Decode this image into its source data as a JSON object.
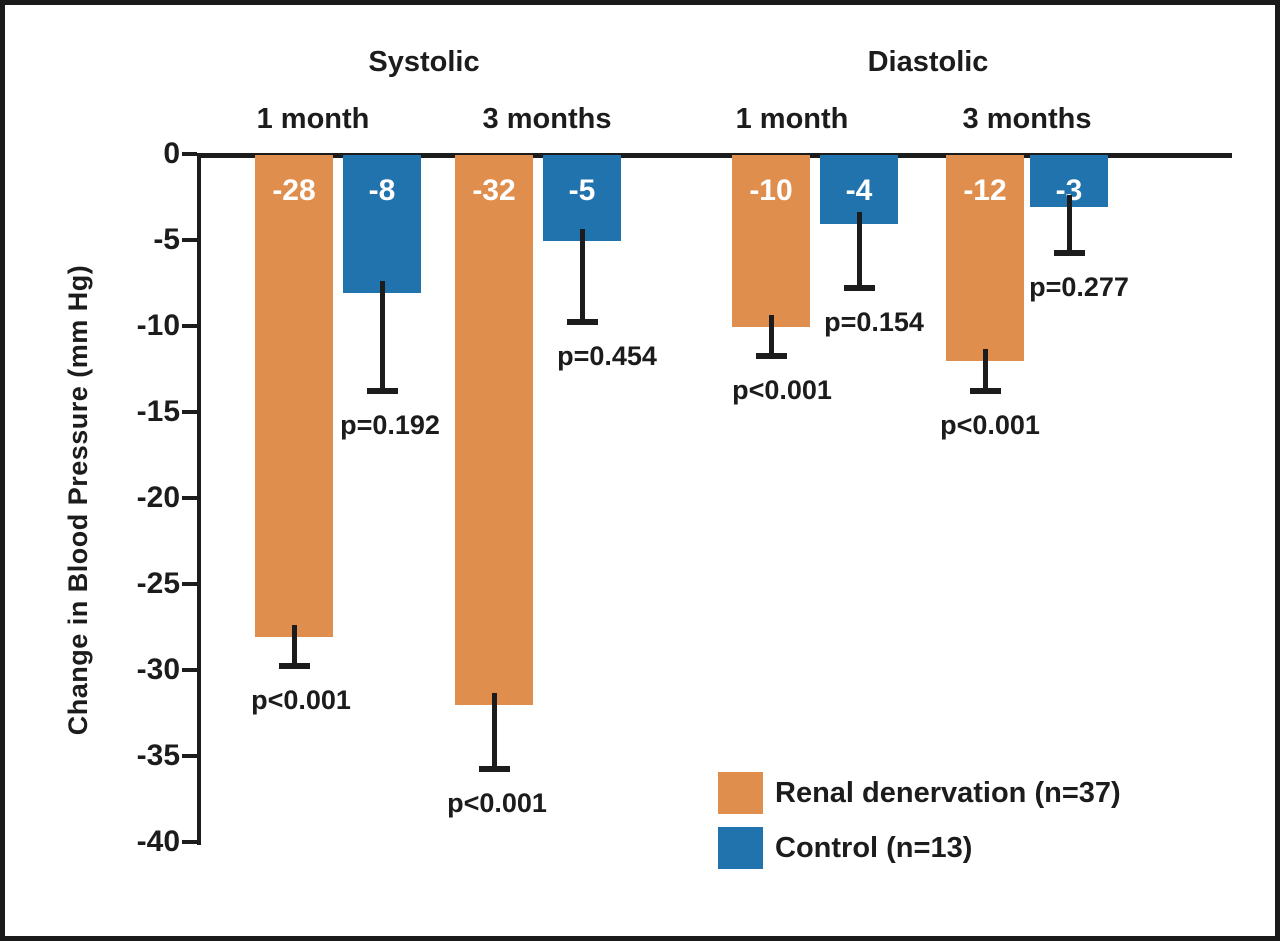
{
  "chart_data": {
    "type": "bar",
    "title": "",
    "ylabel": "Change in Blood Pressure (mm Hg)",
    "xlabel": "",
    "ylim": [
      0,
      -40
    ],
    "yticks": [
      0,
      -5,
      -10,
      -15,
      -20,
      -25,
      -30,
      -35,
      -40
    ],
    "grid": false,
    "legend_position": "bottom-right",
    "sections": [
      {
        "label": "Systolic"
      },
      {
        "label": "Diastolic"
      }
    ],
    "groups": [
      {
        "section": "Systolic",
        "label": "1 month",
        "bars": [
          {
            "series": "Renal denervation",
            "value": -28,
            "whisker_end": -30,
            "p_label": "p<0.001"
          },
          {
            "series": "Control",
            "value": -8,
            "whisker_end": -14,
            "p_label": "p=0.192"
          }
        ]
      },
      {
        "section": "Systolic",
        "label": "3 months",
        "bars": [
          {
            "series": "Renal denervation",
            "value": -32,
            "whisker_end": -36,
            "p_label": "p<0.001"
          },
          {
            "series": "Control",
            "value": -5,
            "whisker_end": -10,
            "p_label": "p=0.454"
          }
        ]
      },
      {
        "section": "Diastolic",
        "label": "1 month",
        "bars": [
          {
            "series": "Renal denervation",
            "value": -10,
            "whisker_end": -12,
            "p_label": "p<0.001"
          },
          {
            "series": "Control",
            "value": -4,
            "whisker_end": -8,
            "p_label": "p=0.154"
          }
        ]
      },
      {
        "section": "Diastolic",
        "label": "3 months",
        "bars": [
          {
            "series": "Renal denervation",
            "value": -12,
            "whisker_end": -14,
            "p_label": "p<0.001"
          },
          {
            "series": "Control",
            "value": -3,
            "whisker_end": -6,
            "p_label": "p=0.277"
          }
        ]
      }
    ],
    "legend": [
      {
        "label": "Renal denervation (n=37)",
        "color": "#DF8E4D"
      },
      {
        "label": "Control (n=13)",
        "color": "#2173AE"
      }
    ],
    "colors": {
      "renal_denervation": "#DF8E4D",
      "control": "#2173AE",
      "axis_and_text": "#1C1C1C",
      "bar_value_text": "#FFFFFF",
      "background": "#FFFFFF"
    }
  }
}
